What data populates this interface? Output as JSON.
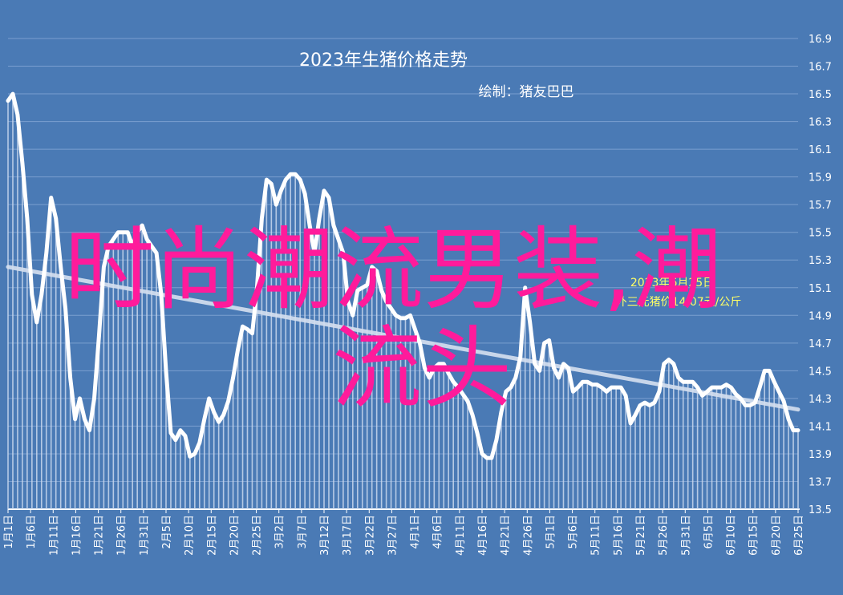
{
  "chart_data": {
    "type": "line",
    "title": "2023年生猪价格走势",
    "subtitle": "绘制：猪友巴巴",
    "annotation": [
      "2023年6月25日",
      "外三元猪价14.07元/公斤"
    ],
    "overlay_text": [
      "时尚潮流男装,潮",
      "流头"
    ],
    "ylim": [
      13.5,
      16.9
    ],
    "yticks": [
      "13.5",
      "13.7",
      "13.9",
      "14.1",
      "14.3",
      "14.5",
      "14.7",
      "14.9",
      "15.1",
      "15.3",
      "15.5",
      "15.7",
      "15.9",
      "16.1",
      "16.3",
      "16.5",
      "16.7",
      "16.9"
    ],
    "x_labels": [
      "1月1日",
      "1月6日",
      "1月11日",
      "1月16日",
      "1月21日",
      "1月26日",
      "1月31日",
      "2月5日",
      "2月10日",
      "2月15日",
      "2月20日",
      "2月25日",
      "3月2日",
      "3月7日",
      "3月12日",
      "3月17日",
      "3月22日",
      "3月27日",
      "4月1日",
      "4月6日",
      "4月11日",
      "4月16日",
      "4月21日",
      "4月26日",
      "5月1日",
      "5月6日",
      "5月11日",
      "5月16日",
      "5月21日",
      "5月26日",
      "5月31日",
      "6月5日",
      "6月10日",
      "6月15日",
      "6月20日",
      "6月25日"
    ],
    "series": [
      {
        "values": [
          16.45,
          16.5,
          16.35,
          16.0,
          15.6,
          15.05,
          14.85,
          15.05,
          15.35,
          15.75,
          15.6,
          15.25,
          14.95,
          14.45,
          14.15,
          14.3,
          14.15,
          14.07,
          14.3,
          14.75,
          15.25,
          15.4,
          15.45,
          15.5,
          15.5,
          15.5,
          15.4,
          15.5,
          15.55,
          15.45,
          15.4,
          15.35,
          15.05,
          14.5,
          14.05,
          14.0,
          14.07,
          14.03,
          13.88,
          13.9,
          13.98,
          14.15,
          14.3,
          14.2,
          14.13,
          14.18,
          14.28,
          14.45,
          14.65,
          14.82,
          14.8,
          14.77,
          15.1,
          15.6,
          15.88,
          15.85,
          15.7,
          15.8,
          15.88,
          15.92,
          15.92,
          15.88,
          15.78,
          15.55,
          15.35,
          15.6,
          15.8,
          15.75,
          15.55,
          15.45,
          15.35,
          15.0,
          14.9,
          15.08,
          15.1,
          15.12,
          15.25,
          15.22,
          15.08,
          15.0,
          14.95,
          14.9,
          14.88,
          14.88,
          14.9,
          14.8,
          14.7,
          14.52,
          14.45,
          14.52,
          14.55,
          14.55,
          14.48,
          14.42,
          14.38,
          14.33,
          14.28,
          14.18,
          14.05,
          13.9,
          13.87,
          13.87,
          14.0,
          14.2,
          14.35,
          14.38,
          14.45,
          14.6,
          15.1,
          14.85,
          14.55,
          14.5,
          14.7,
          14.72,
          14.52,
          14.45,
          14.55,
          14.52,
          14.35,
          14.38,
          14.42,
          14.42,
          14.4,
          14.4,
          14.38,
          14.35,
          14.38,
          14.38,
          14.38,
          14.32,
          14.12,
          14.18,
          14.25,
          14.27,
          14.25,
          14.27,
          14.35,
          14.55,
          14.58,
          14.55,
          14.45,
          14.42,
          14.42,
          14.42,
          14.38,
          14.32,
          14.35,
          14.38,
          14.38,
          14.38,
          14.4,
          14.38,
          14.33,
          14.3,
          14.25,
          14.25,
          14.27,
          14.38,
          14.5,
          14.5,
          14.42,
          14.35,
          14.28,
          14.15,
          14.07,
          14.07
        ],
        "trend": [
          15.25,
          14.22
        ]
      }
    ],
    "colors": {
      "background": "#4a7ab5",
      "line": "#ffffff",
      "trend": "#d6e0f0",
      "overlay": "#ff1b9b",
      "annotation": "#ffff66"
    }
  }
}
